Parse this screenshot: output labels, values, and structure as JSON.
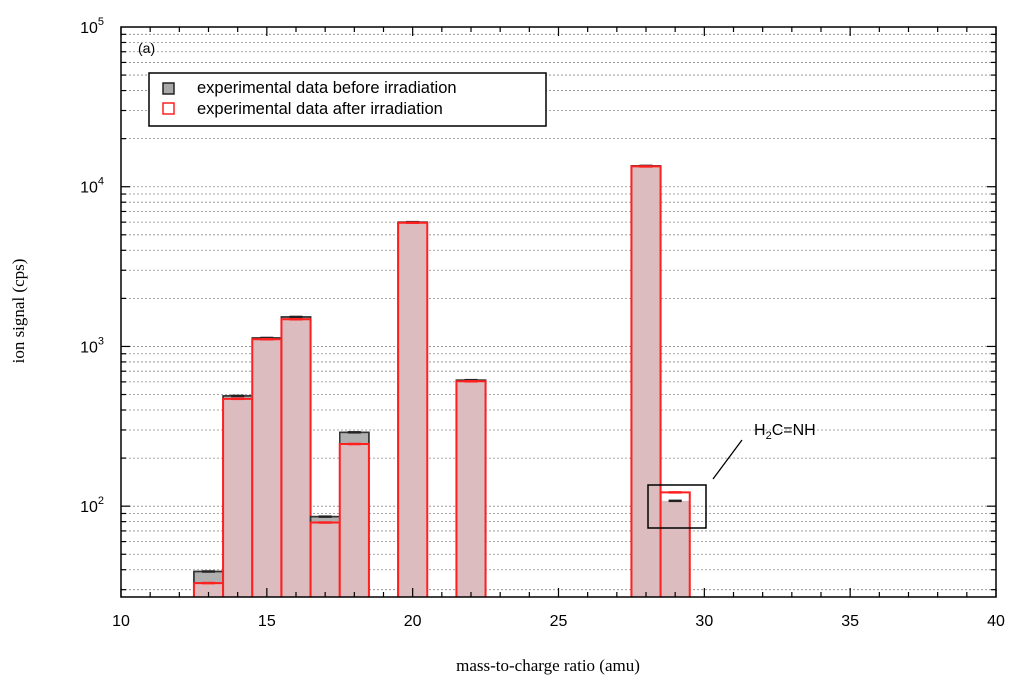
{
  "chart_data": {
    "type": "bar",
    "panel_label": "(a)",
    "xlabel": "mass-to-charge ratio (amu)",
    "ylabel": "ion signal (cps)",
    "xlim": [
      10,
      40
    ],
    "ylim": [
      27,
      100000
    ],
    "y_scale": "log",
    "x_ticks": [
      10,
      15,
      20,
      25,
      30,
      35,
      40
    ],
    "y_ticks": [
      {
        "value": 100,
        "base": "10",
        "exp": "2"
      },
      {
        "value": 1000,
        "base": "10",
        "exp": "3"
      },
      {
        "value": 10000,
        "base": "10",
        "exp": "4"
      },
      {
        "value": 100000,
        "base": "10",
        "exp": "5"
      }
    ],
    "grid": true,
    "legend_position": "top-left",
    "x": [
      13,
      14,
      15,
      16,
      17,
      18,
      20,
      22,
      28,
      29
    ],
    "series": [
      {
        "name": "experimental data before irradiation",
        "color": "#b0b0b0",
        "edge": "#333333",
        "values": [
          39,
          490,
          1130,
          1530,
          86,
          290,
          6000,
          615,
          13500,
          108
        ]
      },
      {
        "name": "experimental data after irradiation",
        "color": "#ff2020",
        "edge": "#ff2020",
        "values": [
          33,
          470,
          1110,
          1480,
          79,
          245,
          5950,
          605,
          13400,
          122
        ]
      }
    ],
    "overlap_fill": "#dcbcbe",
    "annotation": {
      "label": "H2C=NH",
      "prefix": "H",
      "subscript": "2",
      "suffix": "C=NH",
      "target_x": 29
    }
  }
}
